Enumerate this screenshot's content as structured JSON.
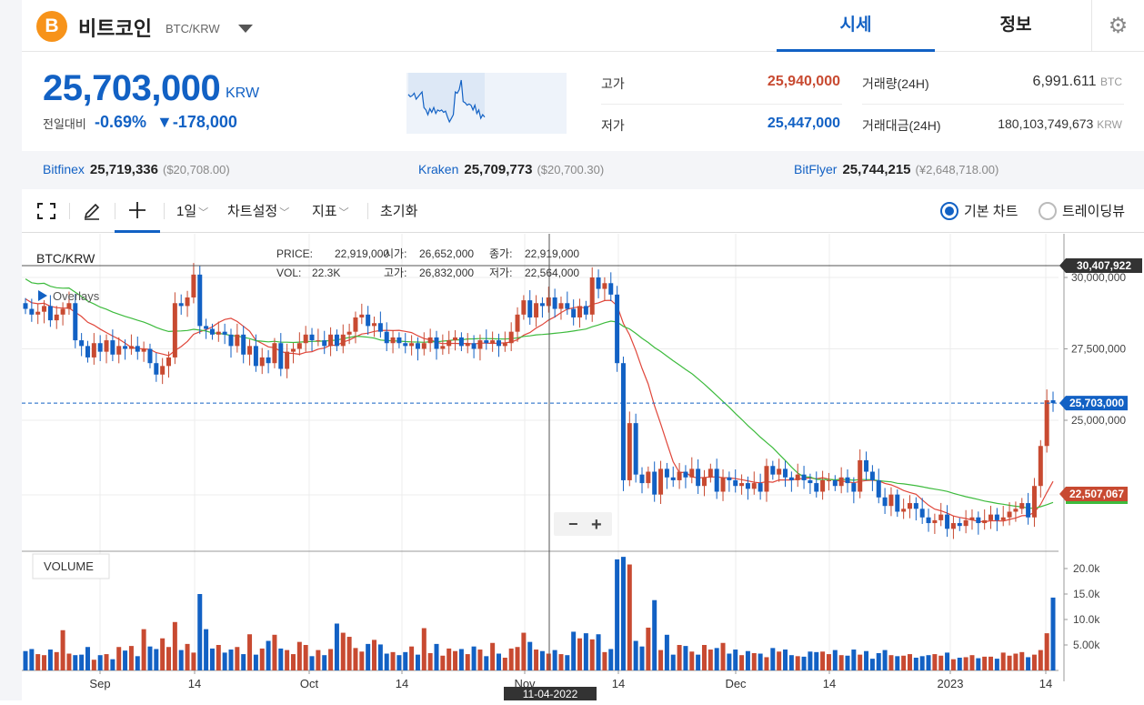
{
  "header": {
    "coin_icon": "bitcoin-icon",
    "coin_symbol": "B",
    "coin_name": "비트코인",
    "coin_pair": "BTC/KRW",
    "tabs": [
      {
        "label": "시세",
        "active": true
      },
      {
        "label": "정보",
        "active": false
      }
    ],
    "settings_icon": "gear-icon"
  },
  "price": {
    "current": "25,703,000",
    "unit": "KRW",
    "change_label": "전일대비",
    "change_pct": "-0.69%",
    "change_amount": "▼-178,000",
    "color": "#1261c4"
  },
  "stats": {
    "high_label": "고가",
    "high_value": "25,940,000",
    "high_color": "#c84a31",
    "low_label": "저가",
    "low_value": "25,447,000",
    "low_color": "#1261c4",
    "volume_label": "거래량(24H)",
    "volume_value": "6,991.611",
    "volume_unit": "BTC",
    "amount_label": "거래대금(24H)",
    "amount_value": "180,103,749,673",
    "amount_unit": "KRW"
  },
  "exchanges": [
    {
      "name": "Bitfinex",
      "value": "25,719,336",
      "sub": "($20,708.00)"
    },
    {
      "name": "Kraken",
      "value": "25,709,773",
      "sub": "($20,700.30)"
    },
    {
      "name": "BitFlyer",
      "value": "25,744,215",
      "sub": "(¥2,648,718.00)"
    }
  ],
  "toolbar": {
    "fullscreen_icon": "fullscreen-icon",
    "draw_icon": "pencil-icon",
    "crosshair_icon": "crosshair-icon",
    "interval": "1일",
    "chart_settings": "차트설정",
    "indicators": "지표",
    "reset": "초기화",
    "basic_chart": "기본 차트",
    "tradingview": "트레이딩뷰",
    "selected_mode": "기본 차트"
  },
  "chart_data": {
    "type": "candlestick",
    "pair_label": "BTC/KRW",
    "overlays_label": "Overlays",
    "volume_label": "VOLUME",
    "info": {
      "price_label": "PRICE:",
      "price": "22,919,000",
      "open_label": "시가:",
      "open": "26,652,000",
      "close_label": "종가:",
      "close": "22,919,000",
      "vol_label": "VOL:",
      "vol": "22.3K",
      "high_label": "고가:",
      "high": "26,832,000",
      "low_label": "저가:",
      "low": "22,564,000"
    },
    "y_ticks": [
      "30,000,000",
      "27,500,000",
      "25,000,000"
    ],
    "y_tick_values": [
      30000000,
      27500000,
      25000000
    ],
    "volume_ticks": [
      "20.0k",
      "15.0k",
      "10.0k",
      "5.00k"
    ],
    "volume_tick_values": [
      20000,
      15000,
      10000,
      5000
    ],
    "x_ticks": [
      "Sep",
      "14",
      "Oct",
      "14",
      "Nov",
      "14",
      "Dec",
      "14",
      "2023",
      "14"
    ],
    "crosshair_date": "11-04-2022",
    "crosshair_price": "30,407,922",
    "current_price_label": "25,703,000",
    "ma_price_label": "22,507,067",
    "zoom_out": "−",
    "zoom_in": "+",
    "close_series": [
      28.9,
      28.7,
      28.8,
      29.0,
      28.5,
      28.7,
      28.9,
      29.1,
      27.8,
      27.6,
      27.2,
      27.7,
      27.4,
      27.8,
      27.3,
      27.6,
      27.5,
      27.6,
      27.4,
      27.5,
      27.0,
      26.6,
      26.9,
      27.2,
      29.1,
      29.0,
      29.3,
      30.1,
      28.3,
      28.2,
      28.0,
      28.1,
      28.0,
      27.6,
      28.0,
      27.3,
      27.6,
      26.9,
      27.2,
      27.0,
      27.7,
      26.8,
      27.4,
      27.5,
      27.7,
      28.0,
      27.8,
      27.8,
      27.6,
      28.0,
      27.6,
      28.0,
      28.1,
      28.6,
      28.7,
      28.3,
      28.4,
      28.1,
      27.7,
      27.9,
      27.7,
      27.6,
      27.7,
      27.5,
      27.7,
      27.9,
      27.5,
      27.6,
      27.8,
      27.9,
      27.6,
      27.7,
      27.5,
      27.8,
      27.7,
      27.8,
      27.6,
      27.7,
      28.1,
      28.7,
      29.2,
      28.6,
      29.1,
      29.0,
      29.3,
      28.9,
      29.1,
      28.9,
      28.6,
      29.0,
      28.7,
      30.0,
      29.6,
      29.8,
      29.4,
      27.0,
      22.9,
      24.9,
      23.1,
      22.8,
      23.2,
      22.4,
      23.3,
      23.0,
      22.9,
      23.2,
      23.0,
      23.3,
      22.7,
      23.0,
      23.3,
      22.5,
      23.0,
      22.9,
      22.7,
      22.8,
      22.6,
      22.8,
      22.5,
      23.4,
      23.1,
      23.3,
      23.0,
      22.9,
      23.1,
      22.9,
      22.8,
      22.5,
      22.9,
      22.9,
      22.7,
      23.0,
      22.8,
      22.5,
      23.6,
      23.2,
      22.9,
      22.3,
      22.0,
      22.4,
      21.8,
      21.9,
      22.1,
      21.9,
      21.6,
      21.4,
      21.5,
      21.7,
      21.2,
      21.4,
      21.3,
      21.5,
      21.6,
      21.4,
      21.5,
      21.7,
      21.5,
      21.6,
      21.8,
      21.9,
      22.1,
      21.6,
      22.7,
      24.1,
      25.7,
      25.6
    ],
    "volume_series": [
      3.8,
      4.2,
      3.2,
      3.0,
      4.1,
      3.6,
      7.9,
      3.3,
      3.0,
      3.1,
      4.6,
      2.1,
      3.0,
      3.2,
      2.2,
      4.6,
      3.9,
      4.8,
      2.8,
      8.1,
      4.7,
      4.2,
      6.3,
      4.6,
      9.5,
      4.0,
      5.2,
      3.5,
      15.0,
      8.1,
      4.3,
      5.0,
      3.5,
      4.1,
      4.6,
      3.2,
      7.1,
      3.1,
      4.3,
      5.8,
      7.0,
      4.3,
      4.0,
      3.2,
      5.6,
      5.0,
      2.8,
      4.0,
      3.0,
      4.2,
      9.2,
      7.4,
      6.6,
      4.4,
      3.7,
      5.2,
      6.0,
      5.1,
      3.3,
      3.6,
      3.0,
      3.6,
      4.7,
      3.1,
      8.3,
      3.4,
      5.2,
      2.9,
      4.3,
      3.8,
      4.2,
      3.2,
      4.7,
      4.1,
      2.8,
      5.4,
      3.3,
      2.5,
      4.3,
      4.6,
      7.4,
      5.6,
      4.1,
      3.8,
      3.3,
      4.0,
      3.2,
      3.0,
      7.6,
      6.3,
      7.3,
      6.1,
      7.1,
      3.6,
      4.2,
      21.8,
      22.3,
      20.8,
      5.8,
      4.7,
      8.4,
      13.8,
      4.0,
      7.0,
      3.1,
      5.0,
      4.8,
      3.7,
      3.1,
      5.0,
      4.1,
      4.4,
      5.4,
      3.3,
      4.1,
      3.0,
      3.8,
      3.4,
      3.3,
      2.6,
      4.4,
      3.7,
      4.1,
      3.0,
      2.8,
      2.7,
      3.7,
      3.6,
      3.7,
      3.2,
      4.0,
      3.0,
      2.9,
      4.1,
      3.1,
      3.8,
      2.3,
      3.4,
      4.0,
      3.0,
      2.8,
      2.9,
      3.2,
      2.5,
      2.8,
      3.0,
      3.2,
      2.9,
      3.5,
      2.2,
      2.5,
      2.6,
      3.0,
      2.4,
      2.7,
      2.7,
      2.3,
      3.5,
      2.9,
      3.3,
      3.6,
      2.6,
      3.1,
      4.0,
      7.3,
      14.3,
      3.3
    ]
  }
}
